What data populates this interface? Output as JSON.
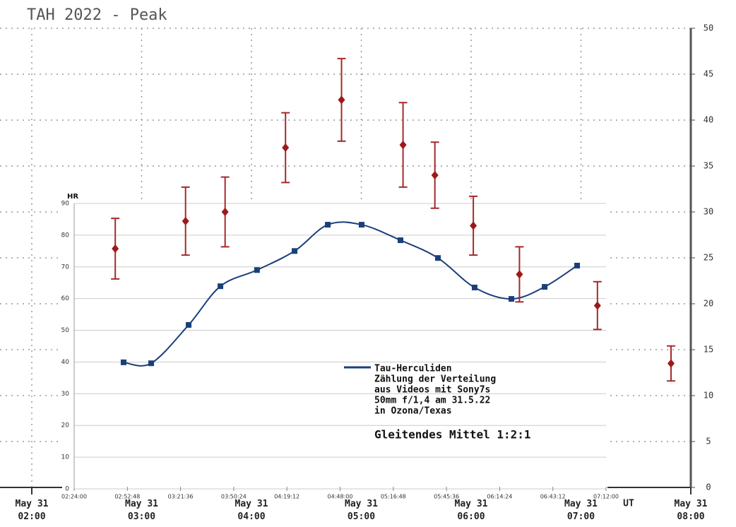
{
  "chart_data": [
    {
      "type": "errorbar",
      "title": "TAH 2022 - Peak",
      "x_label": "UT",
      "xlim": [
        2,
        8
      ],
      "xticks": [
        {
          "value": 2,
          "label": "May 31 02:00"
        },
        {
          "value": 3,
          "label": "May 31 03:00"
        },
        {
          "value": 4,
          "label": "May 31 04:00"
        },
        {
          "value": 5,
          "label": "May 31 05:00"
        },
        {
          "value": 6,
          "label": "May 31 06:00"
        },
        {
          "value": 7,
          "label": "May 31 07:00"
        },
        {
          "value": 8,
          "label": "May 31 08:00"
        }
      ],
      "ylim": [
        0,
        50
      ],
      "yticks": [
        0,
        5,
        10,
        15,
        20,
        25,
        30,
        35,
        40,
        45,
        50
      ],
      "grid": true,
      "series": [
        {
          "color": "#a52a2a",
          "x": [
            2.76,
            3.4,
            3.76,
            4.31,
            4.82,
            5.38,
            5.67,
            6.02,
            6.44,
            7.15,
            7.82
          ],
          "values": [
            26,
            29,
            30,
            37,
            42.2,
            37.3,
            34,
            28.5,
            23.2,
            19.8,
            13.5
          ],
          "errors": [
            3.3,
            3.7,
            3.8,
            3.8,
            4.5,
            4.6,
            3.6,
            3.2,
            3,
            2.6,
            1.9
          ]
        }
      ]
    },
    {
      "type": "line",
      "y_label": "HR",
      "xlim": [
        2.4,
        7.2
      ],
      "xticks": [
        {
          "value": 2.4,
          "label": "02:24:00"
        },
        {
          "value": 2.88,
          "label": "02:52:48"
        },
        {
          "value": 3.36,
          "label": "03:21:36"
        },
        {
          "value": 3.84,
          "label": "03:50:24"
        },
        {
          "value": 4.32,
          "label": "04:19:12"
        },
        {
          "value": 4.8,
          "label": "04:48:00"
        },
        {
          "value": 5.28,
          "label": "05:16:48"
        },
        {
          "value": 5.76,
          "label": "05:45:36"
        },
        {
          "value": 6.24,
          "label": "06:14:24"
        },
        {
          "value": 6.72,
          "label": "06:43:12"
        },
        {
          "value": 7.2,
          "label": "07:12:00"
        }
      ],
      "ylim": [
        0,
        90
      ],
      "yticks": [
        0,
        10,
        20,
        30,
        40,
        50,
        60,
        70,
        80,
        90
      ],
      "grid": true,
      "series": [
        {
          "name": "Tau-Herculiden",
          "color": "#1a3f7a",
          "x": [
            2.846,
            3.095,
            3.433,
            3.72,
            4.05,
            4.389,
            4.689,
            4.994,
            5.345,
            5.683,
            6.014,
            6.346,
            6.646,
            6.939
          ],
          "values": [
            39.9,
            39.6,
            51.7,
            63.9,
            69,
            75,
            83.3,
            83.3,
            78.4,
            72.8,
            63.5,
            59.9,
            63.7,
            70.4
          ]
        }
      ],
      "legend_note": [
        "Zählung der Verteilung",
        "aus Videos mit Sony7s",
        "50mm f/1,4 am 31.5.22",
        "in Ozona/Texas"
      ],
      "annotation": "Gleitendes Mittel 1:2:1"
    }
  ]
}
